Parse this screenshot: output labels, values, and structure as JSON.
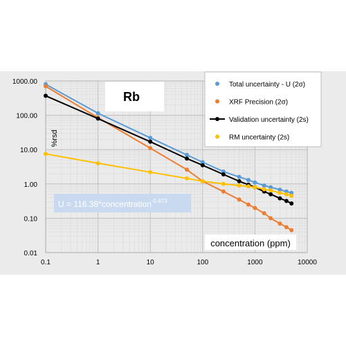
{
  "chart_data": {
    "type": "scatter",
    "x_scale": "log",
    "y_scale": "log",
    "xlim": [
      0.1,
      10000
    ],
    "ylim": [
      0.01,
      1000
    ],
    "x_ticks": [
      "0.1",
      "1",
      "10",
      "100",
      "1000",
      "10000"
    ],
    "y_ticks": [
      "0.01",
      "0.10",
      "1.00",
      "10.00",
      "100.00",
      "1000.00"
    ],
    "grid": true,
    "title": "Rb",
    "xlabel": "concentration (ppm)",
    "ylabel": "%rsd",
    "equation": {
      "text": "U = 116.38*concentration",
      "superscript": "-0.673"
    },
    "legend_position": "top-right",
    "series": [
      {
        "name": "Total uncertainty - U (2σ)",
        "color": "#5b9bd5",
        "x": [
          0.1,
          1,
          10,
          50,
          100,
          250,
          500,
          750,
          1000,
          1500,
          2000,
          3000,
          4000,
          5000
        ],
        "y": [
          800,
          115,
          22,
          7,
          4.3,
          2.3,
          1.6,
          1.3,
          1.1,
          0.9,
          0.8,
          0.68,
          0.6,
          0.55
        ]
      },
      {
        "name": "XRF Precision (2σ)",
        "color": "#ed7d31",
        "x": [
          0.1,
          1,
          10,
          50,
          100,
          250,
          500,
          750,
          1000,
          1500,
          2000,
          3000,
          4000,
          5000
        ],
        "y": [
          700,
          85,
          11,
          2.6,
          1.2,
          0.6,
          0.35,
          0.25,
          0.2,
          0.14,
          0.1,
          0.07,
          0.055,
          0.045
        ]
      },
      {
        "name": "Validation uncertainty (2s)",
        "color": "#000000",
        "x": [
          0.1,
          1,
          10,
          50,
          100,
          250,
          500,
          750,
          1000,
          1500,
          2000,
          3000,
          4000,
          5000
        ],
        "y": [
          370,
          80,
          17,
          5.5,
          3.5,
          1.9,
          1.2,
          0.95,
          0.8,
          0.6,
          0.5,
          0.38,
          0.32,
          0.27
        ]
      },
      {
        "name": "RM uncertainty (2s)",
        "color": "#ffc000",
        "x": [
          0.1,
          1,
          10,
          50,
          100,
          250,
          500,
          750,
          1000,
          1500,
          2000,
          3000,
          4000,
          5000
        ],
        "y": [
          7.5,
          4,
          2.2,
          1.45,
          1.2,
          1,
          0.9,
          0.85,
          0.8,
          0.7,
          0.65,
          0.55,
          0.5,
          0.45
        ]
      }
    ]
  }
}
